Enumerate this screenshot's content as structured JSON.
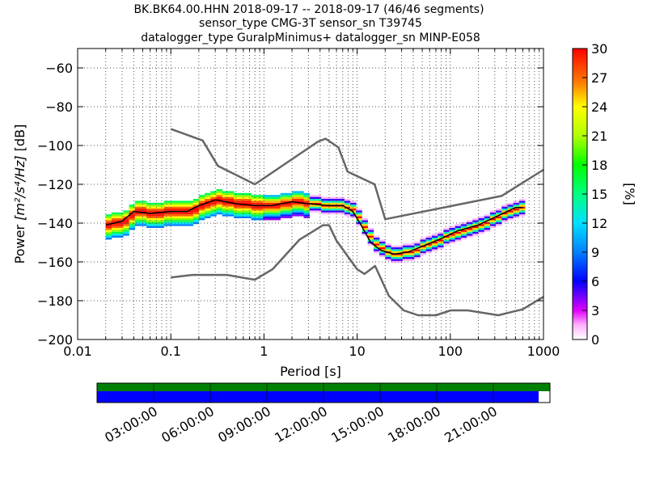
{
  "title_lines": [
    "BK.BK64.00.HHN   2018-09-17 -- 2018-09-17  (46/46 segments)",
    "sensor_type CMG-3T sensor_sn T39745",
    "datalogger_type GuralpMinimus+ datalogger_sn MINP-E058"
  ],
  "chart_data": [
    {
      "type": "heatmap",
      "xlabel": "Period [s]",
      "ylabel_prefix": "Power ",
      "ylabel_units": "[m²/s⁴/Hz]",
      "ylabel_suffix": " [dB]",
      "x_scale": "log",
      "xlim": [
        0.01,
        1000
      ],
      "ylim": [
        -200,
        -50
      ],
      "x_ticks": [
        0.01,
        0.1,
        1,
        10,
        100,
        1000
      ],
      "x_tick_labels": [
        "0.01",
        "0.1",
        "1",
        "10",
        "100",
        "1000"
      ],
      "y_ticks": [
        -200,
        -180,
        -160,
        -140,
        -120,
        -100,
        -80,
        -60
      ],
      "y_tick_labels": [
        "−200",
        "−180",
        "−160",
        "−140",
        "−120",
        "−100",
        "−80",
        "−60"
      ],
      "grid": true,
      "colorbar": {
        "label": "[%]",
        "range": [
          0,
          30
        ],
        "ticks": [
          0,
          3,
          6,
          9,
          12,
          15,
          18,
          21,
          24,
          27,
          30
        ],
        "tick_labels": [
          "0",
          "3",
          "6",
          "9",
          "12",
          "15",
          "18",
          "21",
          "24",
          "27",
          "30"
        ],
        "colormap": "pqlx"
      },
      "mode_curve": {
        "x": [
          0.02,
          0.03,
          0.04,
          0.06,
          0.1,
          0.15,
          0.2,
          0.3,
          0.5,
          0.8,
          1.2,
          2,
          3,
          5,
          7,
          9,
          11,
          14,
          18,
          25,
          35,
          50,
          80,
          120,
          200,
          300,
          500,
          600
        ],
        "y": [
          -141,
          -139,
          -134,
          -135,
          -134,
          -134,
          -131,
          -128,
          -130,
          -131,
          -131,
          -129,
          -130,
          -131,
          -131,
          -134,
          -141,
          -150,
          -154,
          -156,
          -155,
          -152,
          -148,
          -144,
          -141,
          -137,
          -132,
          -132
        ]
      },
      "high_noise_model": {
        "x": [
          0.1,
          0.22,
          0.32,
          0.8,
          3.8,
          4.6,
          6.3,
          7.9,
          15.4,
          20,
          354.8,
          1000
        ],
        "y": [
          -91.5,
          -97.4,
          -110.5,
          -120,
          -98,
          -96.5,
          -101,
          -113.5,
          -120,
          -138,
          -126,
          -112.5
        ]
      },
      "low_noise_model": {
        "x": [
          0.1,
          0.17,
          0.4,
          0.8,
          1.24,
          2.4,
          4.3,
          5,
          6,
          10,
          12,
          15.6,
          21.9,
          31.6,
          45,
          70,
          101,
          154,
          328,
          600,
          1000
        ],
        "y": [
          -168,
          -166.7,
          -166.7,
          -169.2,
          -163.7,
          -148.6,
          -141.1,
          -141.1,
          -149,
          -163.8,
          -166.2,
          -162.1,
          -177.5,
          -185,
          -187.5,
          -187.5,
          -185,
          -185,
          -187.5,
          -184.4,
          -178
        ]
      },
      "histogram_bins_note": "probability density in percent"
    },
    {
      "type": "table",
      "time_ticks": [
        "03:00:00",
        "06:00:00",
        "09:00:00",
        "12:00:00",
        "15:00:00",
        "18:00:00",
        "21:00:00"
      ],
      "data_coverage_fraction": 1.0,
      "psd_coverage_fraction": 0.975,
      "colors": {
        "data": "#008000",
        "psd": "#0000ff"
      }
    }
  ],
  "colors": {
    "background": "#ffffff",
    "axes": "#000000",
    "grid": "#555555",
    "noise_models": "#666666",
    "mode": "#000000"
  }
}
